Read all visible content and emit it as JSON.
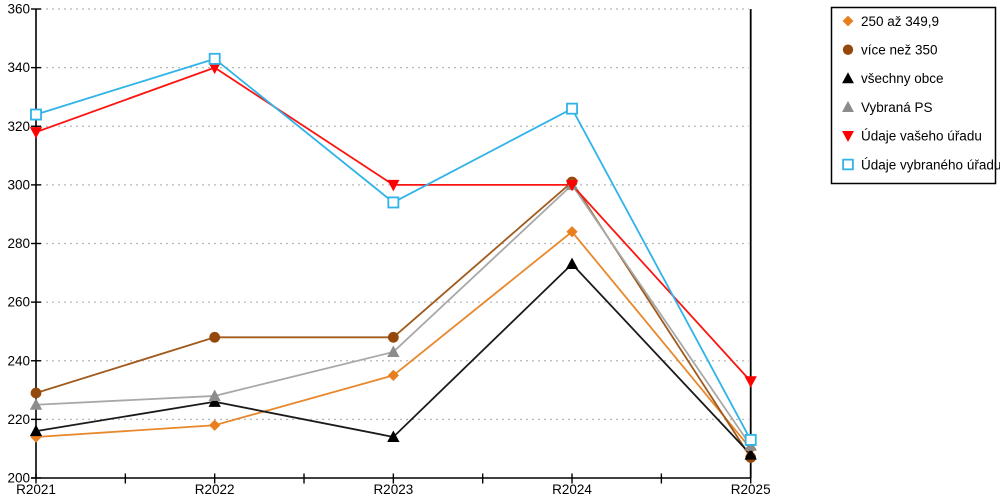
{
  "chart_data": {
    "type": "line",
    "title": "",
    "xlabel": "",
    "ylabel": "",
    "x_labels": [
      "R2021",
      "R2022",
      "R2023",
      "R2024",
      "R2025"
    ],
    "ylim": [
      200,
      360
    ],
    "y_tick_step": 20,
    "y_ticks": [
      200,
      220,
      240,
      260,
      280,
      300,
      320,
      340,
      360
    ],
    "grid": "dotted-horizontal",
    "gridline_color": "#b8b8b8",
    "axis_color": "#000000",
    "background_color": "#ffffff",
    "legend_position": "top-right",
    "series": [
      {
        "name": "250 až 349,9",
        "color": "#e87e1e",
        "line_color": "#e8882e",
        "marker": "diamond",
        "values": [
          214,
          218,
          235,
          284,
          210
        ]
      },
      {
        "name": "více než 350",
        "color": "#95480b",
        "line_color": "#a05a1c",
        "marker": "circle",
        "values": [
          229,
          248,
          248,
          301,
          207
        ]
      },
      {
        "name": "všechny obce",
        "color": "#000000",
        "line_color": "#1a1a1a",
        "marker": "triangle-up",
        "values": [
          216,
          226,
          214,
          273,
          208
        ]
      },
      {
        "name": "Vybraná PS",
        "color": "#8c8c8c",
        "line_color": "#a8a8a8",
        "marker": "triangle-up",
        "values": [
          225,
          228,
          243,
          300,
          211
        ]
      },
      {
        "name": "Údaje vašeho úřadu",
        "color": "#ff0000",
        "line_color": "#fb1511",
        "marker": "triangle-down",
        "values": [
          318,
          340,
          300,
          300,
          233
        ]
      },
      {
        "name": "Údaje vybraného úřadu",
        "color": "#2fb3e8",
        "line_color": "#2fb3e8",
        "marker": "square-open",
        "values": [
          324,
          343,
          294,
          326,
          213
        ]
      }
    ]
  }
}
